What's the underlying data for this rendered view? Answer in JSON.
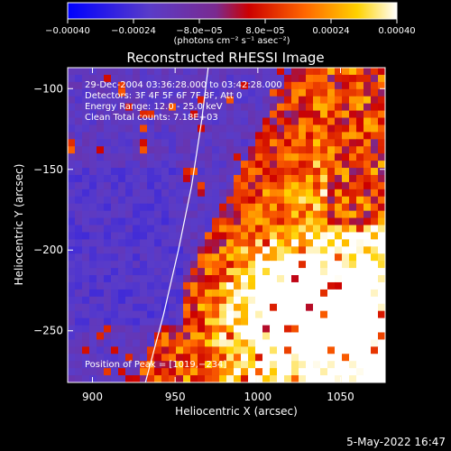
{
  "colorbar": {
    "tick_labels": [
      "−0.00040",
      "−0.00024",
      "−8.0e−05",
      "8.0e−05",
      "0.00024",
      "0.00040"
    ],
    "tick_values": [
      -0.0004,
      -0.00024,
      -8e-05,
      8e-05,
      0.00024,
      0.0004
    ],
    "range": [
      -0.0004,
      0.0004
    ],
    "units_label": "(photons cm⁻² s⁻¹ asec⁻²)",
    "colors": [
      "#0000ff",
      "#5a3cc8",
      "#7a2a90",
      "#cc0000",
      "#ff6600",
      "#ffd200",
      "#ffffff"
    ]
  },
  "chart_data": {
    "type": "heatmap",
    "title": "Reconstructed RHESSI Image",
    "xlabel": "Heliocentric X (arcsec)",
    "ylabel": "Heliocentric Y (arcsec)",
    "xlim": [
      885,
      1077
    ],
    "ylim": [
      -282,
      -87
    ],
    "x_ticks": [
      900,
      950,
      1000,
      1050
    ],
    "x_tick_labels": [
      "900",
      "950",
      "1000",
      "1050"
    ],
    "y_ticks": [
      -100,
      -150,
      -200,
      -250
    ],
    "y_tick_labels": [
      "−100",
      "−150",
      "−200",
      "−250"
    ],
    "annotations": [
      "29-Dec-2004 03:36:28.000 to 03:42:28.000",
      "Detectors: 3F 4F 5F 6F 7F 8F, Att 0",
      "Energy Range: 12.0 - 25.0 keV",
      "Clean     Total counts: 7.18E+03"
    ],
    "peak_label": "Position of Peak = [1019,−234]",
    "peak": [
      1019,
      -234
    ],
    "limb_curve": {
      "x": [
        970,
        966,
        960,
        952,
        943,
        932
      ],
      "y": [
        -87,
        -120,
        -160,
        -200,
        -240,
        -282
      ]
    }
  },
  "footer": {
    "date": "5-May-2022 16:47"
  }
}
